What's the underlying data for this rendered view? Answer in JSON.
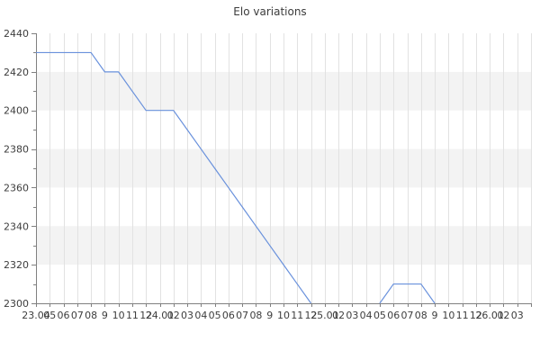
{
  "chart_data": {
    "type": "line",
    "title": "Elo variations",
    "x": [
      "23.04",
      "05",
      "06",
      "07",
      "08",
      "9",
      "10",
      "11",
      "12",
      "24.01",
      "02",
      "03",
      "04",
      "05",
      "06",
      "07",
      "08",
      "9",
      "10",
      "11",
      "12",
      "25.01",
      "02",
      "03",
      "04",
      "05",
      "06",
      "07",
      "08",
      "9",
      "10",
      "11",
      "12",
      "26.01",
      "02",
      "03"
    ],
    "series": [
      {
        "name": "Elo",
        "values": [
          2430,
          2430,
          2430,
          2430,
          2430,
          2420,
          2420,
          2410,
          2400,
          2400,
          2400,
          2390,
          2380,
          2370,
          2360,
          2350,
          2340,
          2330,
          2320,
          2310,
          2300,
          null,
          null,
          null,
          null,
          2300,
          2310,
          2310,
          2310,
          2300,
          null,
          null,
          null,
          null,
          null,
          null
        ]
      }
    ],
    "ylim": [
      2300,
      2440
    ],
    "y_ticks": [
      2440,
      2420,
      2400,
      2380,
      2360,
      2340,
      2320,
      2300
    ],
    "y_minor_tick_step": 10,
    "xlabel": "",
    "ylabel": "",
    "legend": "none",
    "grid": "vertical gridline per month; alternating horizontal shaded bands every 20 points",
    "colors": {
      "line": "#6991dc",
      "band": "#f3f3f3",
      "gridline": "#e2e2e2",
      "axis": "#808080",
      "text": "#3d3d3d",
      "background": "#ffffff"
    }
  }
}
